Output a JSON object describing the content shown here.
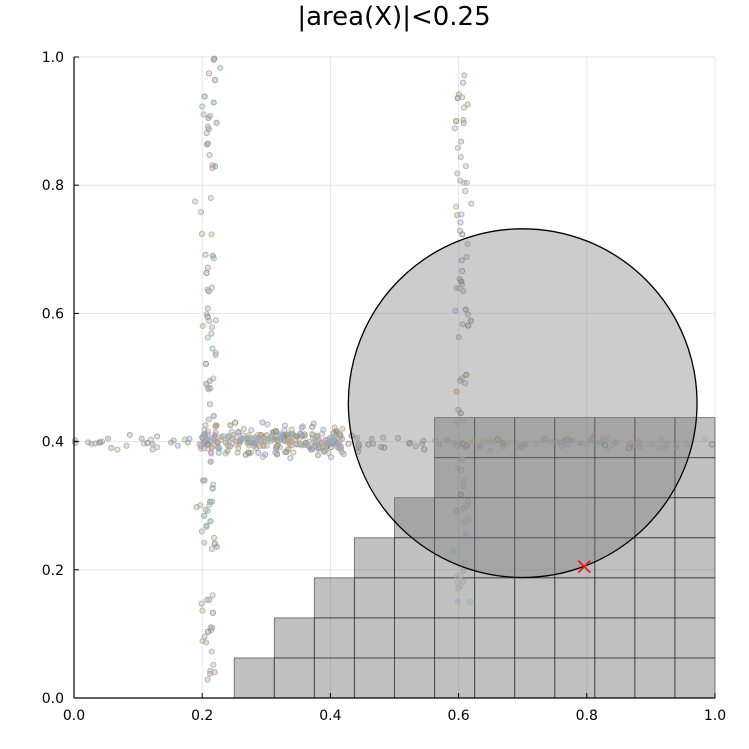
{
  "chart_data": {
    "type": "scatter",
    "title": "|area(X)|<0.25",
    "xlabel": "",
    "ylabel": "",
    "xlim": [
      0,
      1
    ],
    "ylim": [
      0,
      1
    ],
    "grid": true,
    "x_ticks": [
      0.0,
      0.2,
      0.4,
      0.6,
      0.8,
      1.0
    ],
    "y_ticks": [
      0.0,
      0.2,
      0.4,
      0.6,
      0.8,
      1.0
    ],
    "x_tick_labels": [
      "0.0",
      "0.2",
      "0.4",
      "0.6",
      "0.8",
      "1.0"
    ],
    "y_tick_labels": [
      "0.0",
      "0.2",
      "0.4",
      "0.6",
      "0.8",
      "1.0"
    ],
    "grid_cell": 0.0625,
    "staircase_columns": [
      {
        "x0": 0.25,
        "height": 0.0625
      },
      {
        "x0": 0.3125,
        "height": 0.125
      },
      {
        "x0": 0.375,
        "height": 0.1875
      },
      {
        "x0": 0.4375,
        "height": 0.25
      },
      {
        "x0": 0.5,
        "height": 0.3125
      },
      {
        "x0": 0.5625,
        "height": 0.4375
      },
      {
        "x0": 0.625,
        "height": 0.4375
      },
      {
        "x0": 0.6875,
        "height": 0.4375
      },
      {
        "x0": 0.75,
        "height": 0.4375
      },
      {
        "x0": 0.8125,
        "height": 0.4375
      },
      {
        "x0": 0.875,
        "height": 0.4375
      },
      {
        "x0": 0.9375,
        "height": 0.4375
      }
    ],
    "circle": {
      "cx": 0.7,
      "cy": 0.46,
      "r": 0.272
    },
    "marker_x": {
      "x": 0.796,
      "y": 0.205,
      "color": "#e41a1c"
    },
    "scatter_clusters": [
      {
        "orientation": "vertical",
        "x": 0.21,
        "y_from": 0.02,
        "y_to": 1.0,
        "count": 110,
        "spread": 0.008
      },
      {
        "orientation": "vertical",
        "x": 0.605,
        "y_from": 0.14,
        "y_to": 0.99,
        "count": 80,
        "spread": 0.006
      },
      {
        "orientation": "horizontal",
        "y": 0.398,
        "x_from": 0.0,
        "x_to": 1.0,
        "count": 150,
        "spread": 0.006
      },
      {
        "orientation": "blob",
        "x_from": 0.2,
        "x_to": 0.42,
        "y": 0.4,
        "count": 220,
        "spread": 0.012
      }
    ],
    "point_colors": [
      "#8fb9b3",
      "#b49a86",
      "#9aa2c8",
      "#bda0c4",
      "#a8b48a",
      "#7f8a6c",
      "#c4a48f",
      "#8fa0b6"
    ]
  }
}
